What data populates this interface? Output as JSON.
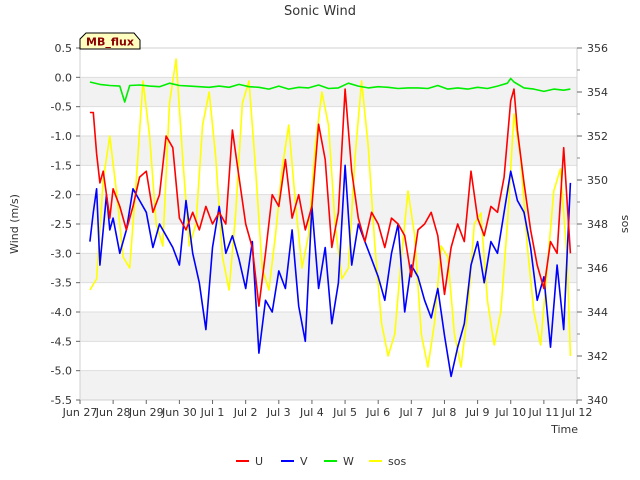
{
  "chart_data": {
    "type": "line",
    "title": "Sonic Wind",
    "xlabel": "Time",
    "ylabel": "Wind (m/s)",
    "y2label": "sos",
    "badge": "MB_flux",
    "x_ticks": [
      "Jun 27",
      "Jun 28",
      "Jun 29",
      "Jun 30",
      "Jul 1",
      "Jul 2",
      "Jul 3",
      "Jul 4",
      "Jul 5",
      "Jul 6",
      "Jul 7",
      "Jul 8",
      "Jul 9",
      "Jul 10",
      "Jul 11",
      "Jul 12"
    ],
    "xlim": [
      0,
      15
    ],
    "ylim": [
      -5.5,
      0.5
    ],
    "y_ticks": [
      "0.5",
      "0.0",
      "-0.5",
      "-1.0",
      "-1.5",
      "-2.0",
      "-2.5",
      "-3.0",
      "-3.5",
      "-4.0",
      "-4.5",
      "-5.0",
      "-5.5"
    ],
    "y2lim": [
      340,
      356
    ],
    "y2_ticks": [
      "356",
      "354",
      "352",
      "350",
      "348",
      "346",
      "344",
      "342",
      "340"
    ],
    "legend_position": "bottom",
    "series": [
      {
        "name": "U",
        "axis": "left",
        "color": "#ff0000",
        "x": [
          0.3,
          0.4,
          0.5,
          0.6,
          0.7,
          0.8,
          0.9,
          1.0,
          1.2,
          1.4,
          1.6,
          1.8,
          2.0,
          2.2,
          2.4,
          2.6,
          2.8,
          3.0,
          3.2,
          3.4,
          3.6,
          3.8,
          4.0,
          4.2,
          4.4,
          4.6,
          4.8,
          5.0,
          5.2,
          5.4,
          5.6,
          5.8,
          6.0,
          6.2,
          6.4,
          6.6,
          6.8,
          7.0,
          7.2,
          7.4,
          7.6,
          7.8,
          8.0,
          8.2,
          8.4,
          8.6,
          8.8,
          9.0,
          9.2,
          9.4,
          9.6,
          9.8,
          10.0,
          10.2,
          10.4,
          10.6,
          10.8,
          11.0,
          11.2,
          11.4,
          11.6,
          11.8,
          12.0,
          12.2,
          12.4,
          12.6,
          12.8,
          13.0,
          13.1,
          13.2,
          13.4,
          13.6,
          13.8,
          14.0,
          14.2,
          14.4,
          14.6,
          14.8
        ],
        "values": [
          -0.6,
          -0.6,
          -1.3,
          -1.8,
          -1.6,
          -2.0,
          -2.4,
          -1.9,
          -2.2,
          -2.6,
          -2.2,
          -1.7,
          -1.6,
          -2.3,
          -2.0,
          -1.0,
          -1.2,
          -2.4,
          -2.6,
          -2.3,
          -2.6,
          -2.2,
          -2.5,
          -2.3,
          -2.5,
          -0.9,
          -1.7,
          -2.5,
          -2.9,
          -3.9,
          -3.0,
          -2.0,
          -2.2,
          -1.4,
          -2.4,
          -2.0,
          -2.6,
          -2.2,
          -0.8,
          -1.4,
          -2.9,
          -2.3,
          -0.2,
          -1.6,
          -2.4,
          -2.8,
          -2.3,
          -2.5,
          -2.9,
          -2.4,
          -2.5,
          -2.7,
          -3.4,
          -2.6,
          -2.5,
          -2.3,
          -2.7,
          -3.7,
          -2.9,
          -2.5,
          -2.8,
          -1.6,
          -2.4,
          -2.7,
          -2.2,
          -2.3,
          -1.7,
          -0.4,
          -0.2,
          -0.9,
          -1.8,
          -2.6,
          -3.2,
          -3.6,
          -2.8,
          -3.0,
          -1.2,
          -3.0
        ]
      },
      {
        "name": "V",
        "axis": "left",
        "color": "#0000ff",
        "x": [
          0.3,
          0.4,
          0.5,
          0.6,
          0.7,
          0.8,
          0.9,
          1.0,
          1.2,
          1.4,
          1.6,
          1.8,
          2.0,
          2.2,
          2.4,
          2.6,
          2.8,
          3.0,
          3.2,
          3.4,
          3.6,
          3.8,
          4.0,
          4.2,
          4.4,
          4.6,
          4.8,
          5.0,
          5.2,
          5.4,
          5.6,
          5.8,
          6.0,
          6.2,
          6.4,
          6.6,
          6.8,
          7.0,
          7.2,
          7.4,
          7.6,
          7.8,
          8.0,
          8.2,
          8.4,
          8.6,
          8.8,
          9.0,
          9.2,
          9.4,
          9.6,
          9.8,
          10.0,
          10.2,
          10.4,
          10.6,
          10.8,
          11.0,
          11.2,
          11.4,
          11.6,
          11.8,
          12.0,
          12.2,
          12.4,
          12.6,
          12.8,
          13.0,
          13.2,
          13.4,
          13.6,
          13.8,
          14.0,
          14.2,
          14.4,
          14.6,
          14.8
        ],
        "values": [
          -2.8,
          -2.3,
          -1.9,
          -3.2,
          -2.6,
          -2.0,
          -2.6,
          -2.4,
          -3.0,
          -2.6,
          -1.9,
          -2.1,
          -2.3,
          -2.9,
          -2.5,
          -2.7,
          -2.9,
          -3.2,
          -2.1,
          -3.0,
          -3.5,
          -4.3,
          -2.9,
          -2.2,
          -3.0,
          -2.7,
          -3.1,
          -3.6,
          -2.8,
          -4.7,
          -3.8,
          -4.0,
          -3.3,
          -3.6,
          -2.6,
          -3.9,
          -4.5,
          -2.2,
          -3.6,
          -2.9,
          -4.2,
          -3.5,
          -1.5,
          -3.2,
          -2.5,
          -2.8,
          -3.1,
          -3.4,
          -3.8,
          -3.0,
          -2.5,
          -4.0,
          -3.2,
          -3.4,
          -3.8,
          -4.1,
          -3.6,
          -4.4,
          -5.1,
          -4.6,
          -4.2,
          -3.2,
          -2.8,
          -3.5,
          -2.8,
          -3.0,
          -2.3,
          -1.6,
          -2.1,
          -2.3,
          -2.9,
          -3.8,
          -3.4,
          -4.6,
          -3.2,
          -4.3,
          -1.8
        ]
      },
      {
        "name": "W",
        "axis": "left",
        "color": "#00ee00",
        "x": [
          0.3,
          0.6,
          0.9,
          1.2,
          1.35,
          1.5,
          1.8,
          2.1,
          2.4,
          2.7,
          3.0,
          3.3,
          3.6,
          3.9,
          4.2,
          4.5,
          4.8,
          5.1,
          5.4,
          5.7,
          6.0,
          6.3,
          6.6,
          6.9,
          7.2,
          7.5,
          7.8,
          8.1,
          8.4,
          8.7,
          9.0,
          9.3,
          9.6,
          9.9,
          10.2,
          10.5,
          10.8,
          11.1,
          11.4,
          11.7,
          12.0,
          12.3,
          12.6,
          12.9,
          13.0,
          13.1,
          13.4,
          13.7,
          14.0,
          14.3,
          14.6,
          14.8
        ],
        "values": [
          -0.08,
          -0.12,
          -0.14,
          -0.15,
          -0.42,
          -0.14,
          -0.13,
          -0.15,
          -0.16,
          -0.1,
          -0.14,
          -0.15,
          -0.16,
          -0.17,
          -0.15,
          -0.17,
          -0.12,
          -0.16,
          -0.17,
          -0.2,
          -0.15,
          -0.2,
          -0.17,
          -0.18,
          -0.13,
          -0.19,
          -0.18,
          -0.1,
          -0.15,
          -0.18,
          -0.16,
          -0.17,
          -0.19,
          -0.18,
          -0.18,
          -0.19,
          -0.14,
          -0.2,
          -0.18,
          -0.2,
          -0.17,
          -0.19,
          -0.15,
          -0.1,
          -0.02,
          -0.08,
          -0.18,
          -0.2,
          -0.24,
          -0.2,
          -0.22,
          -0.2
        ]
      },
      {
        "name": "sos",
        "axis": "right",
        "color": "#ffff00",
        "x": [
          0.3,
          0.5,
          0.7,
          0.9,
          1.1,
          1.3,
          1.5,
          1.7,
          1.9,
          2.1,
          2.3,
          2.5,
          2.7,
          2.9,
          3.1,
          3.3,
          3.5,
          3.7,
          3.9,
          4.1,
          4.3,
          4.5,
          4.7,
          4.9,
          5.1,
          5.3,
          5.5,
          5.7,
          5.9,
          6.1,
          6.3,
          6.5,
          6.7,
          6.9,
          7.1,
          7.3,
          7.5,
          7.7,
          7.9,
          8.1,
          8.3,
          8.5,
          8.7,
          8.9,
          9.1,
          9.3,
          9.5,
          9.7,
          9.9,
          10.1,
          10.3,
          10.5,
          10.7,
          10.9,
          11.1,
          11.3,
          11.5,
          11.7,
          11.9,
          12.1,
          12.3,
          12.5,
          12.7,
          12.9,
          13.1,
          13.3,
          13.5,
          13.7,
          13.9,
          14.1,
          14.3,
          14.5,
          14.7,
          14.8
        ],
        "values": [
          345.0,
          345.5,
          350.0,
          352.0,
          349.5,
          346.5,
          346.0,
          350.0,
          354.5,
          352.0,
          348.0,
          347.0,
          353.5,
          355.5,
          351.0,
          347.0,
          348.0,
          352.5,
          354.0,
          351.0,
          346.5,
          345.0,
          348.5,
          353.5,
          354.5,
          350.5,
          346.0,
          345.0,
          347.5,
          350.5,
          352.5,
          349.0,
          346.0,
          347.5,
          351.5,
          354.0,
          352.5,
          348.0,
          345.5,
          346.0,
          351.0,
          354.5,
          351.5,
          347.0,
          343.5,
          342.0,
          343.0,
          346.5,
          349.5,
          347.5,
          343.0,
          341.5,
          343.5,
          347.0,
          346.5,
          343.0,
          341.5,
          344.0,
          348.0,
          348.5,
          344.5,
          342.5,
          344.0,
          348.0,
          353.0,
          351.0,
          347.0,
          344.0,
          342.5,
          346.0,
          349.5,
          350.5,
          346.5,
          342.0
        ]
      }
    ]
  }
}
